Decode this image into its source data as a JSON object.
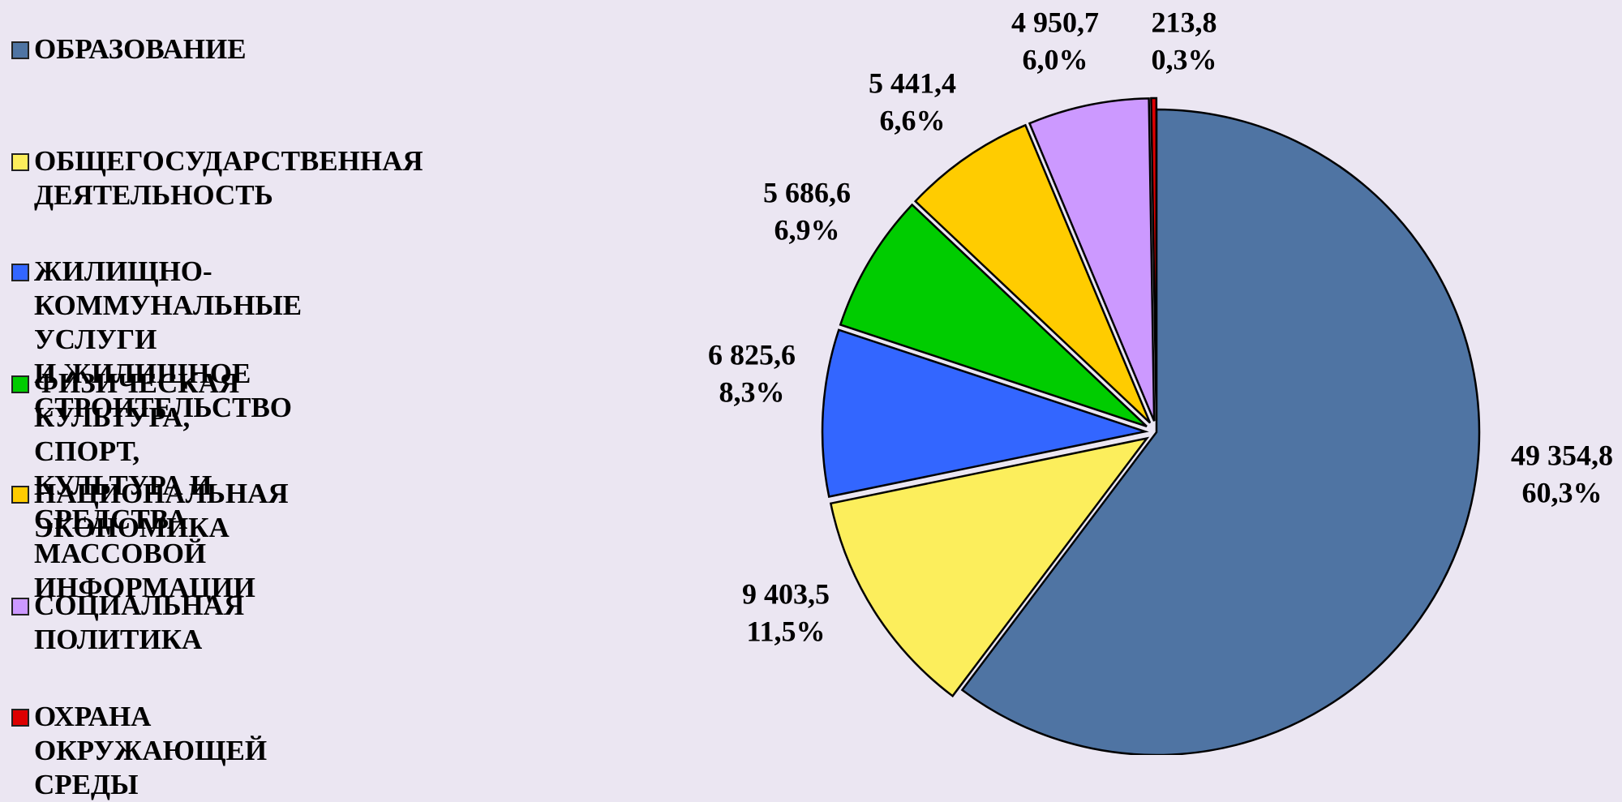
{
  "chart_data": {
    "type": "pie",
    "categories": [
      "ОБРАЗОВАНИЕ",
      "ОБЩЕГОСУДАРСТВЕННАЯ\nДЕЯТЕЛЬНОСТЬ",
      "ЖИЛИЩНО-КОММУНАЛЬНЫЕ УСЛУГИ\nИ ЖИЛИЩНОЕ СТРОИТЕЛЬСТВО",
      "ФИЗИЧЕСКАЯ КУЛЬТУРА, СПОРТ,\nКУЛЬТУРА И СРЕДСТВА МАССОВОЙ\nИНФОРМАЦИИ",
      "НАЦИОНАЛЬНАЯ ЭКОНОМИКА",
      "СОЦИАЛЬНАЯ ПОЛИТИКА",
      "ОХРАНА ОКРУЖАЮЩЕЙ СРЕДЫ"
    ],
    "values": [
      49354.8,
      9403.5,
      6825.6,
      5686.6,
      5441.4,
      4950.7,
      213.8
    ],
    "value_labels": [
      "49 354,8",
      "9 403,5",
      "6 825,6",
      "5 686,6",
      "5 441,4",
      "4 950,7",
      "213,8"
    ],
    "percents": [
      60.3,
      11.5,
      8.3,
      6.9,
      6.6,
      6.0,
      0.3
    ],
    "percent_labels": [
      "60,3%",
      "11,5%",
      "8,3%",
      "6,9%",
      "6,6%",
      "6,0%",
      "0,3%"
    ],
    "colors": [
      "#4f74a3",
      "#fcee5c",
      "#3366ff",
      "#00cc00",
      "#ffcc00",
      "#cc99ff",
      "#dd0000"
    ],
    "legend": "left"
  }
}
